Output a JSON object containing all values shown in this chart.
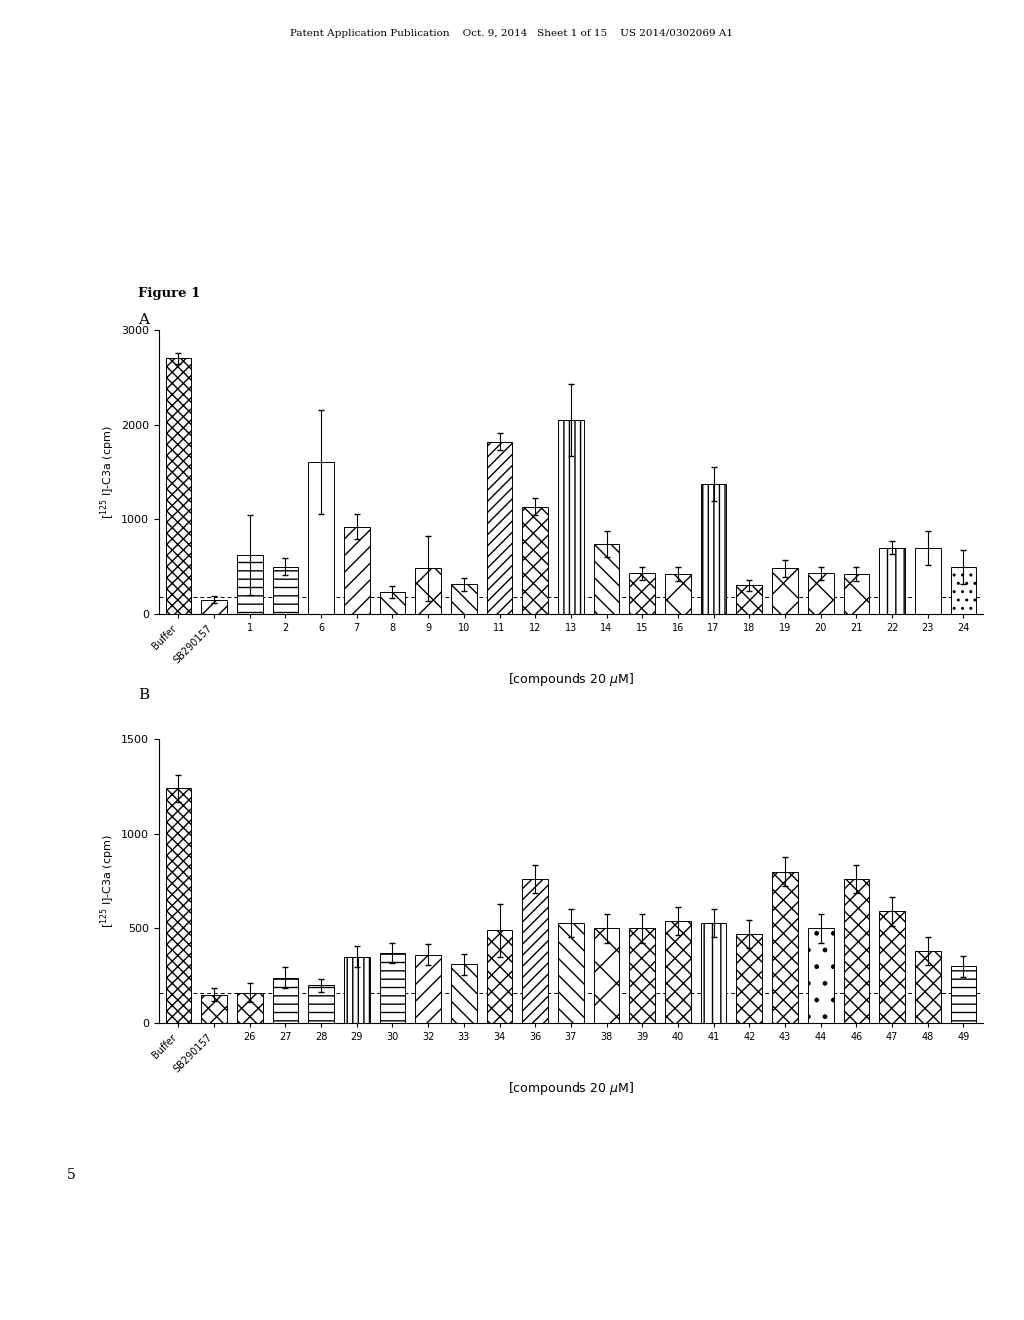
{
  "header_text": "Patent Application Publication    Oct. 9, 2014   Sheet 1 of 15    US 2014/0302069 A1",
  "footer_number": "5",
  "panel_A": {
    "label": "A",
    "ylabel": "[$^{125}$ I]-C3a (cpm)",
    "xlabel": "[compounds 20 μM]",
    "ylim": [
      0,
      3000
    ],
    "yticks": [
      0,
      1000,
      2000,
      3000
    ],
    "categories": [
      "Buffer",
      "SB290157",
      "1",
      "2",
      "6",
      "7",
      "8",
      "9",
      "10",
      "11",
      "12",
      "13",
      "14",
      "15",
      "16",
      "17",
      "18",
      "19",
      "20",
      "21",
      "22",
      "23",
      "24"
    ],
    "values": [
      2700,
      150,
      620,
      500,
      1600,
      920,
      230,
      480,
      310,
      1820,
      1130,
      2050,
      740,
      430,
      420,
      1370,
      300,
      480,
      430,
      420,
      700,
      700,
      490
    ],
    "errors": [
      60,
      40,
      420,
      90,
      550,
      130,
      60,
      340,
      70,
      90,
      90,
      380,
      140,
      70,
      70,
      180,
      60,
      90,
      70,
      70,
      70,
      180,
      180
    ],
    "hatch_patterns": [
      "xxx",
      "//",
      "-",
      "-",
      "",
      "//",
      "\\\\",
      "x",
      "\\\\",
      "///",
      "xx",
      "|||",
      "\\\\",
      "xx",
      "x",
      "|||",
      "xx",
      "x",
      "x",
      "x",
      "||",
      "",
      ".."
    ],
    "dashed_line_y": 180
  },
  "panel_B": {
    "label": "B",
    "ylabel": "[$^{125}$ I]-C3a (cpm)",
    "xlabel": "[compounds 20 μM]",
    "ylim": [
      0,
      1500
    ],
    "yticks": [
      0,
      500,
      1000,
      1500
    ],
    "categories": [
      "Buffer",
      "SB290157",
      "26",
      "27",
      "28",
      "29",
      "30",
      "32",
      "33",
      "34",
      "36",
      "37",
      "38",
      "39",
      "40",
      "41",
      "42",
      "43",
      "44",
      "46",
      "47",
      "48",
      "49"
    ],
    "values": [
      1240,
      150,
      160,
      240,
      200,
      350,
      370,
      360,
      310,
      490,
      760,
      530,
      500,
      500,
      540,
      530,
      470,
      800,
      500,
      760,
      590,
      380,
      300
    ],
    "errors": [
      70,
      35,
      50,
      55,
      35,
      55,
      55,
      55,
      55,
      140,
      75,
      75,
      75,
      75,
      75,
      75,
      75,
      75,
      75,
      75,
      75,
      75,
      55
    ],
    "hatch_patterns": [
      "xxx",
      "xx",
      "xx",
      "-",
      "-",
      "|||",
      "-",
      "//",
      "\\\\",
      "xx",
      "///",
      "\\\\",
      "x",
      "xx",
      "xx",
      "||",
      "xx",
      "xx",
      ".",
      "xx",
      "xx",
      "xx",
      "-"
    ],
    "dashed_line_y": 160
  }
}
